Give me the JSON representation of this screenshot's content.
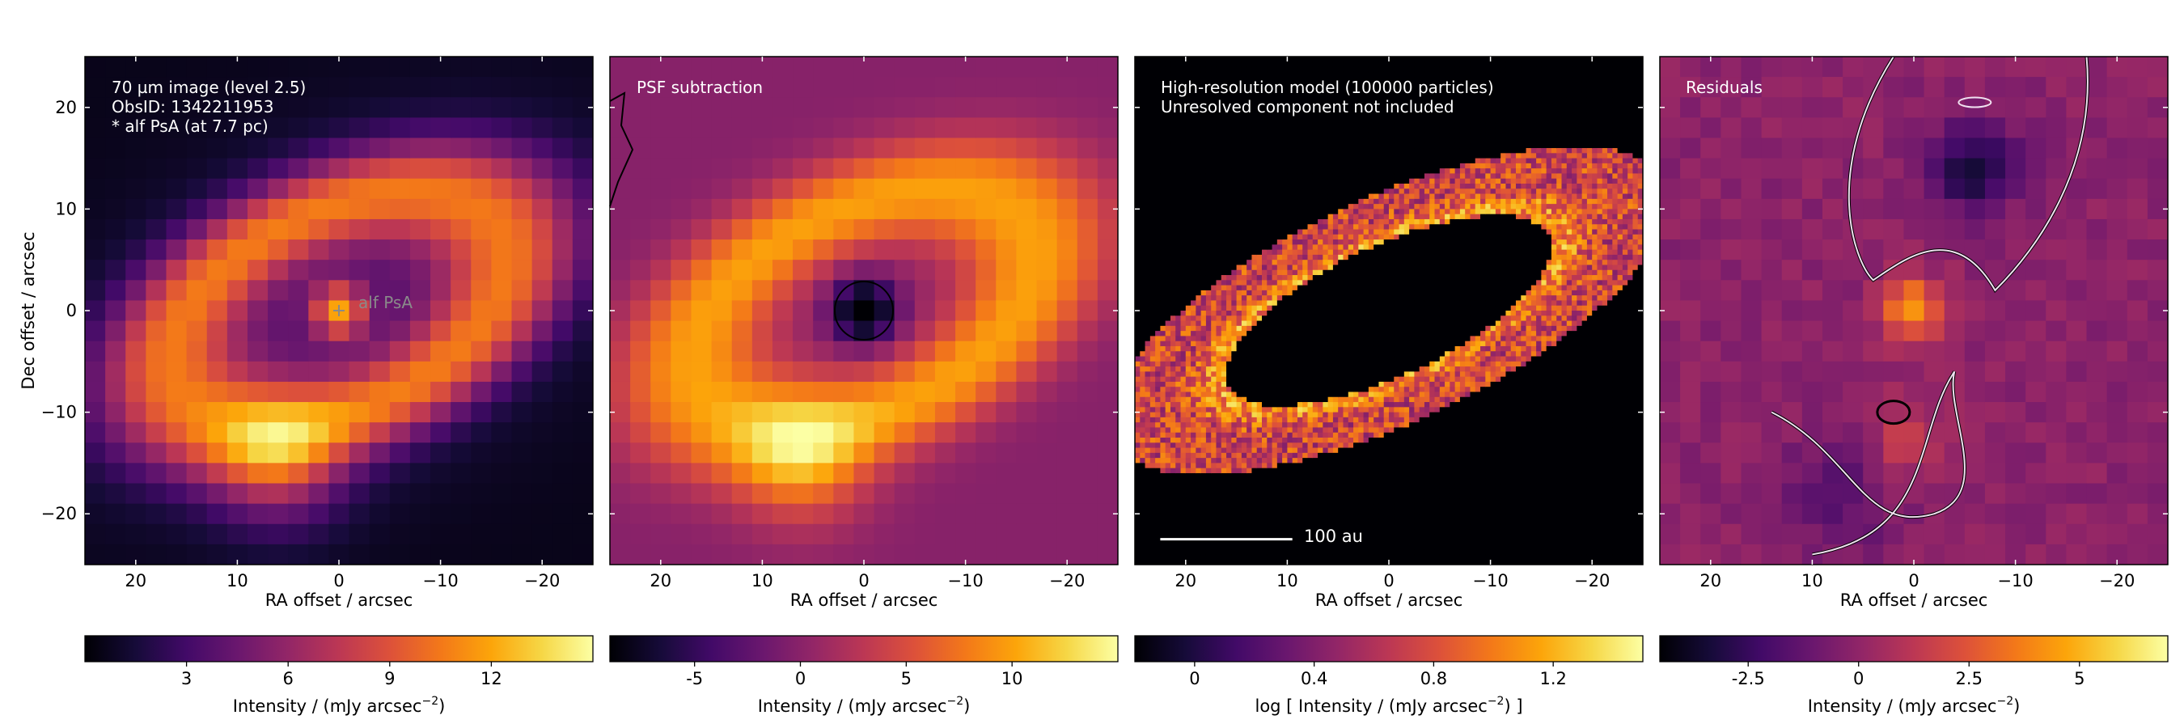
{
  "panels": [
    {
      "id": "observation",
      "annotation_lines": [
        "70 µm image (level 2.5)",
        "ObsID: 1342211953",
        "* alf PsA (at 7.7 pc)"
      ],
      "star_marker_label": "alf PsA",
      "xlabel": "RA offset / arcsec",
      "ylabel": "Dec offset / arcsec",
      "colorbar": {
        "ticks": [
          "3",
          "6",
          "9",
          "12"
        ],
        "tick_values": [
          3,
          6,
          9,
          12
        ],
        "range": [
          0,
          15
        ],
        "label_main": "Intensity / (mJy arcsec",
        "label_exp": "−2",
        "label_close": ")"
      }
    },
    {
      "id": "psf-subtraction",
      "annotation_lines": [
        "PSF subtraction"
      ],
      "xlabel": "RA offset / arcsec",
      "colorbar": {
        "ticks": [
          "-5",
          "0",
          "5",
          "10"
        ],
        "tick_values": [
          -5,
          0,
          5,
          10
        ],
        "range": [
          -9,
          15
        ],
        "label_main": "Intensity / (mJy arcsec",
        "label_exp": "−2",
        "label_close": ")"
      }
    },
    {
      "id": "model",
      "annotation_lines": [
        "High-resolution model (100000 particles)",
        "Unresolved component not included"
      ],
      "scalebar_label": "100 au",
      "xlabel": "RA offset / arcsec",
      "colorbar": {
        "ticks": [
          "0",
          "0.4",
          "0.8",
          "1.2"
        ],
        "tick_values": [
          0,
          0.4,
          0.8,
          1.2
        ],
        "range": [
          -0.2,
          1.5
        ],
        "label_main": "log [ Intensity / (mJy arcsec",
        "label_exp": "−2",
        "label_close": ") ]"
      }
    },
    {
      "id": "residuals",
      "annotation_lines": [
        "Residuals"
      ],
      "xlabel": "RA offset / arcsec",
      "colorbar": {
        "ticks": [
          "-2.5",
          "0",
          "2.5",
          "5"
        ],
        "tick_values": [
          -2.5,
          0,
          2.5,
          5
        ],
        "range": [
          -4.5,
          7
        ],
        "label_main": "Intensity / (mJy arcsec",
        "label_exp": "−2",
        "label_close": ")"
      }
    }
  ],
  "chart_data": {
    "type": "heatmap",
    "colormap": "inferno",
    "x_axis": {
      "label": "RA offset / arcsec",
      "range": [
        25,
        -25
      ],
      "ticks": [
        20,
        10,
        0,
        -10,
        -20
      ],
      "tick_labels": [
        "20",
        "10",
        "0",
        "−10",
        "−20"
      ]
    },
    "y_axis": {
      "label": "Dec offset / arcsec",
      "range": [
        -25,
        25
      ],
      "ticks": [
        20,
        10,
        0,
        -10,
        -20
      ],
      "tick_labels": [
        "20",
        "10",
        "0",
        "−10",
        "−20"
      ]
    },
    "disk": {
      "center": [
        0,
        0
      ],
      "semi_major_arcsec": 18,
      "semi_minor_arcsec": 10,
      "position_angle_deg": 155,
      "brightest_ansa": [
        6,
        -15
      ]
    },
    "star": {
      "name": "alf PsA",
      "position": [
        0,
        0
      ]
    },
    "panels": [
      {
        "name": "70 µm image (level 2.5)",
        "intensity_range": [
          0,
          15
        ],
        "units": "mJy arcsec^-2"
      },
      {
        "name": "PSF subtraction",
        "intensity_range": [
          -9,
          15
        ],
        "units": "mJy arcsec^-2"
      },
      {
        "name": "High-resolution model (100000 particles)",
        "log_intensity_range": [
          -0.2,
          1.5
        ],
        "scalebar_au": 100
      },
      {
        "name": "Residuals",
        "intensity_range": [
          -4.5,
          7
        ],
        "units": "mJy arcsec^-2"
      }
    ]
  }
}
